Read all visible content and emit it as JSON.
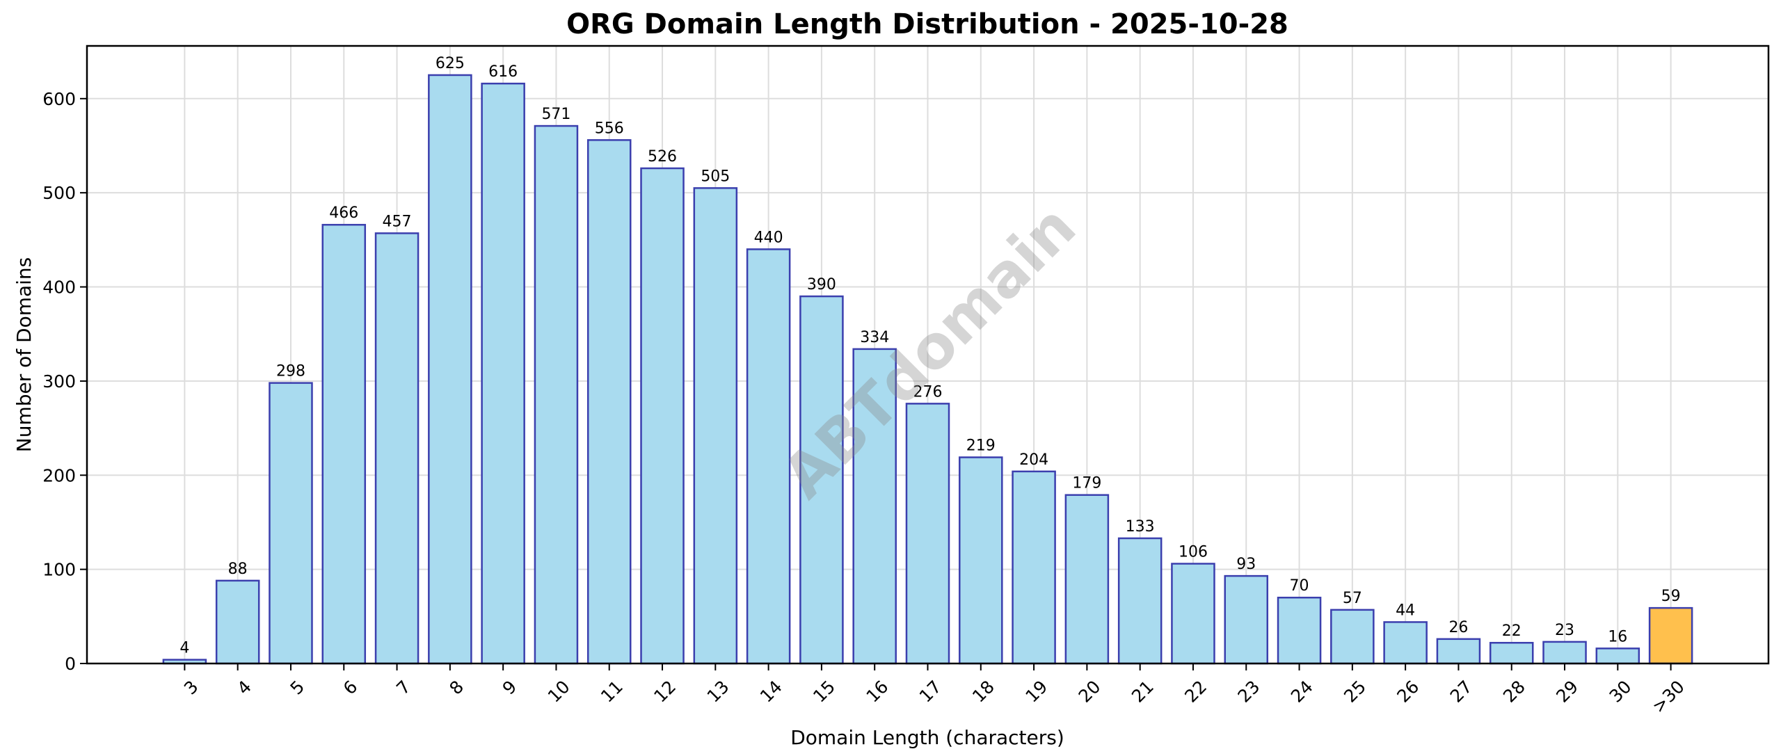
{
  "chart_data": {
    "type": "bar",
    "title": "ORG Domain Length Distribution - 2025-10-28",
    "xlabel": "Domain Length (characters)",
    "ylabel": "Number of Domains",
    "categories": [
      "3",
      "4",
      "5",
      "6",
      "7",
      "8",
      "9",
      "10",
      "11",
      "12",
      "13",
      "14",
      "15",
      "16",
      "17",
      "18",
      "19",
      "20",
      "21",
      "22",
      "23",
      "24",
      "25",
      "26",
      "27",
      "28",
      "29",
      "30",
      ">30"
    ],
    "values": [
      4,
      88,
      298,
      466,
      457,
      625,
      616,
      571,
      556,
      526,
      505,
      440,
      390,
      334,
      276,
      219,
      204,
      179,
      133,
      106,
      93,
      70,
      57,
      44,
      26,
      22,
      23,
      16,
      59
    ],
    "ylim": [
      0,
      656
    ],
    "yticks": [
      0,
      100,
      200,
      300,
      400,
      500,
      600
    ],
    "grid": true,
    "colors": {
      "bar": "#a9dbef",
      "highlight": "#ffc04d",
      "edge": "#3b3fae"
    },
    "highlight_category": ">30",
    "watermark": "ABTdomain"
  }
}
